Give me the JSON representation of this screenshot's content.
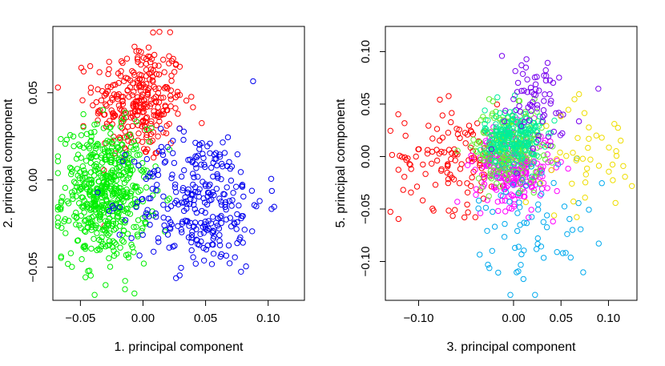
{
  "chart_data": [
    {
      "type": "scatter",
      "xlabel": "1. principal component",
      "ylabel": "2. principal component",
      "xlim": [
        -0.072,
        0.129
      ],
      "ylim": [
        -0.069,
        0.088
      ],
      "xticks": [
        -0.05,
        0.0,
        0.05,
        0.1
      ],
      "xtick_labels": [
        "−0.05",
        "0.00",
        "0.05",
        "0.10"
      ],
      "yticks": [
        -0.05,
        0.0,
        0.05
      ],
      "ytick_labels": [
        "−0.05",
        "0.00",
        "0.05"
      ],
      "series": [
        {
          "name": "red",
          "color": "#ff0000",
          "n": 300,
          "cx": -0.003,
          "cy": 0.045,
          "sx": 0.018,
          "sy": 0.017
        },
        {
          "name": "green",
          "color": "#00ee00",
          "n": 550,
          "cx": -0.03,
          "cy": -0.008,
          "sx": 0.017,
          "sy": 0.019
        },
        {
          "name": "blue",
          "color": "#0000ee",
          "n": 300,
          "cx": 0.045,
          "cy": -0.012,
          "sx": 0.026,
          "sy": 0.02
        }
      ]
    },
    {
      "type": "scatter",
      "xlabel": "3. principal component",
      "ylabel": "5. principal component",
      "xlim": [
        -0.135,
        0.13
      ],
      "ylim": [
        -0.137,
        0.124
      ],
      "xticks": [
        -0.1,
        0.0,
        0.05,
        0.1
      ],
      "xtick_labels": [
        "−0.10",
        "0.00",
        "0.05",
        "0.10"
      ],
      "yticks": [
        -0.1,
        -0.05,
        0.0,
        0.05,
        0.1
      ],
      "ytick_labels": [
        "−0.10",
        "−0.05",
        "0.00",
        "0.05",
        "0.10"
      ],
      "series": [
        {
          "name": "red",
          "color": "#ff0000",
          "n": 130,
          "cx": -0.06,
          "cy": 0.0,
          "sx": 0.03,
          "sy": 0.025
        },
        {
          "name": "magenta",
          "color": "#ff00ff",
          "n": 260,
          "cx": 0.0,
          "cy": -0.01,
          "sx": 0.02,
          "sy": 0.018
        },
        {
          "name": "green",
          "color": "#66ee33",
          "n": 230,
          "cx": -0.005,
          "cy": 0.01,
          "sx": 0.018,
          "sy": 0.018
        },
        {
          "name": "cyan-green",
          "color": "#00ee99",
          "n": 200,
          "cx": 0.0,
          "cy": 0.018,
          "sx": 0.015,
          "sy": 0.014
        },
        {
          "name": "sky",
          "color": "#00aaee",
          "n": 70,
          "cx": 0.02,
          "cy": -0.06,
          "sx": 0.03,
          "sy": 0.03
        },
        {
          "name": "purple",
          "color": "#7700ee",
          "n": 70,
          "cx": 0.02,
          "cy": 0.05,
          "sx": 0.025,
          "sy": 0.025
        },
        {
          "name": "yellow",
          "color": "#eedd00",
          "n": 45,
          "cx": 0.08,
          "cy": 0.0,
          "sx": 0.025,
          "sy": 0.025
        }
      ]
    }
  ]
}
